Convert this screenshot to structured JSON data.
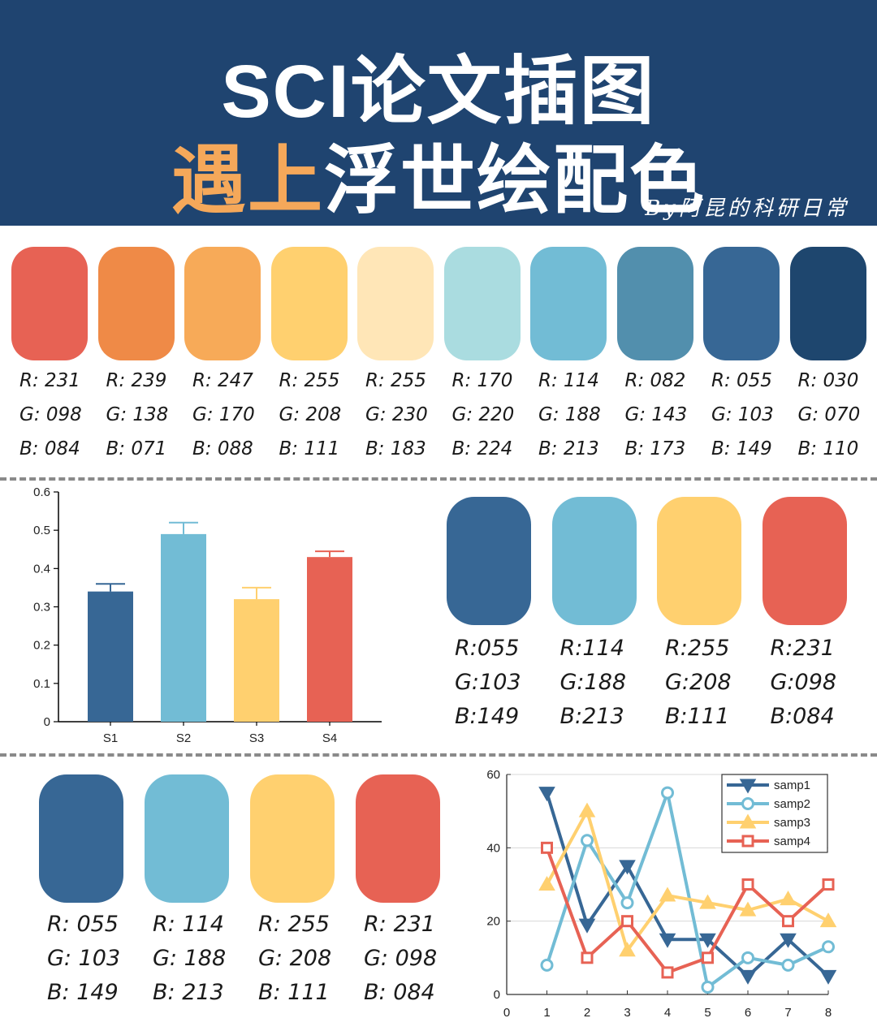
{
  "header": {
    "title_line1": "SCI论文插图",
    "title_line2_highlight": "遇上",
    "title_line2_rest": "浮世绘配色",
    "byline": "By阿昆的科研日常",
    "background": "#1f4470",
    "highlight_color": "#f5a85a"
  },
  "palette": [
    {
      "hex": "#e76254",
      "r": "R: 231",
      "g": "G: 098",
      "b": "B: 084"
    },
    {
      "hex": "#ef8a47",
      "r": "R: 239",
      "g": "G: 138",
      "b": "B: 071"
    },
    {
      "hex": "#f7aa58",
      "r": "R: 247",
      "g": "G: 170",
      "b": "B: 088"
    },
    {
      "hex": "#ffd06f",
      "r": "R: 255",
      "g": "G: 208",
      "b": "B: 111"
    },
    {
      "hex": "#ffe6b7",
      "r": "R: 255",
      "g": "G: 230",
      "b": "B: 183"
    },
    {
      "hex": "#aadce0",
      "r": "R: 170",
      "g": "G: 220",
      "b": "B: 224"
    },
    {
      "hex": "#72bcd5",
      "r": "R: 114",
      "g": "G: 188",
      "b": "B: 213"
    },
    {
      "hex": "#528fad",
      "r": "R: 082",
      "g": "G: 143",
      "b": "B: 173"
    },
    {
      "hex": "#376795",
      "r": "R: 055",
      "g": "G: 103",
      "b": "B: 149"
    },
    {
      "hex": "#1e466e",
      "r": "R: 030",
      "g": "G: 070",
      "b": "B: 110"
    }
  ],
  "palette_mid": [
    {
      "hex": "#376795",
      "r": "R:055",
      "g": "G:103",
      "b": "B:149"
    },
    {
      "hex": "#72bcd5",
      "r": "R:114",
      "g": "G:188",
      "b": "B:213"
    },
    {
      "hex": "#ffd06f",
      "r": "R:255",
      "g": "G:208",
      "b": "B:111"
    },
    {
      "hex": "#e76254",
      "r": "R:231",
      "g": "G:098",
      "b": "B:084"
    }
  ],
  "palette_bottom": [
    {
      "hex": "#376795",
      "r": "R: 055",
      "g": "G: 103",
      "b": "B: 149"
    },
    {
      "hex": "#72bcd5",
      "r": "R: 114",
      "g": "G: 188",
      "b": "B: 213"
    },
    {
      "hex": "#ffd06f",
      "r": "R: 255",
      "g": "G: 208",
      "b": "B: 111"
    },
    {
      "hex": "#e76254",
      "r": "R: 231",
      "g": "G: 098",
      "b": "B: 084"
    }
  ],
  "chart_data": [
    {
      "type": "bar",
      "title": "",
      "xlabel": "",
      "ylabel": "",
      "categories": [
        "S1",
        "S2",
        "S3",
        "S4"
      ],
      "values": [
        0.34,
        0.49,
        0.32,
        0.43
      ],
      "errors": [
        0.02,
        0.03,
        0.03,
        0.015
      ],
      "colors": [
        "#376795",
        "#72bcd5",
        "#ffd06f",
        "#e76254"
      ],
      "ylim": [
        0,
        0.6
      ],
      "yticks": [
        "0",
        "0.1",
        "0.2",
        "0.3",
        "0.4",
        "0.5",
        "0.6"
      ],
      "grid": false,
      "legend": "none"
    },
    {
      "type": "line",
      "title": "",
      "xlabel": "",
      "ylabel": "",
      "x": [
        1,
        2,
        3,
        4,
        5,
        6,
        7,
        8
      ],
      "xlim": [
        0,
        8
      ],
      "ylim": [
        0,
        60
      ],
      "xticks": [
        "0",
        "1",
        "2",
        "3",
        "4",
        "5",
        "6",
        "7",
        "8"
      ],
      "yticks": [
        "0",
        "20",
        "40",
        "60"
      ],
      "grid": true,
      "legend": "top-right",
      "series": [
        {
          "name": "samp1",
          "marker": "triangle-down",
          "color": "#376795",
          "values": [
            55,
            19,
            35,
            15,
            15,
            5,
            15,
            5
          ]
        },
        {
          "name": "samp2",
          "marker": "circle",
          "color": "#72bcd5",
          "values": [
            8,
            42,
            25,
            55,
            2,
            10,
            8,
            13
          ]
        },
        {
          "name": "samp3",
          "marker": "triangle-up",
          "color": "#ffd06f",
          "values": [
            30,
            50,
            12,
            27,
            25,
            23,
            26,
            20
          ]
        },
        {
          "name": "samp4",
          "marker": "square",
          "color": "#e76254",
          "values": [
            40,
            10,
            20,
            6,
            10,
            30,
            20,
            30
          ]
        }
      ]
    }
  ]
}
